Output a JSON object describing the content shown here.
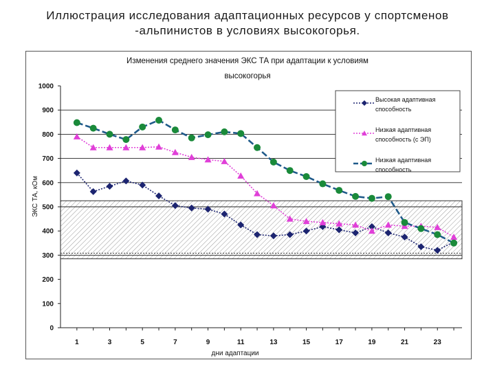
{
  "slide": {
    "title_line1": "Иллюстрация исследования адаптационных ресурсов у спортсменов",
    "title_line2": "-альпинистов в условиях высокогорья."
  },
  "chart_data": {
    "type": "line",
    "title_line1": "Изменения среднего значения ЭКС ТА при адаптации к условиям",
    "title_line2": "высокогорья",
    "xlabel": "дни адаптации",
    "ylabel": "ЭКС ТА, кОм",
    "ylim": [
      0,
      1000
    ],
    "yticks": [
      0,
      100,
      200,
      300,
      400,
      500,
      600,
      700,
      800,
      900,
      1000
    ],
    "xlim": [
      0,
      24.5
    ],
    "xticks": [
      1,
      3,
      5,
      7,
      9,
      11,
      13,
      15,
      17,
      19,
      21,
      23
    ],
    "grid": "horizontal major lines at 300, 500, 600, 700, 800, 900",
    "shaded_band": [
      285,
      525
    ],
    "dashed_reference": [
      308
    ],
    "legend_position": "top-right",
    "series": [
      {
        "name": "Высокая адаптивная способность",
        "legend_lines": [
          "Высокая адаптивная",
          "способность"
        ],
        "color": "#1c2470",
        "marker": "diamond",
        "line": "dotted",
        "x": [
          1,
          2,
          3,
          4,
          5,
          6,
          7,
          8,
          9,
          10,
          11,
          12,
          13,
          14,
          15,
          16,
          17,
          18,
          19,
          20,
          21,
          22,
          23,
          24
        ],
        "values": [
          640,
          563,
          585,
          607,
          590,
          545,
          505,
          495,
          490,
          470,
          425,
          385,
          380,
          385,
          400,
          418,
          405,
          392,
          418,
          392,
          375,
          335,
          320,
          355
        ]
      },
      {
        "name": "Низкая адаптивная способность (с ЭП)",
        "legend_lines": [
          "Низкая адаптивная",
          "способность (с ЭП)"
        ],
        "color": "#e03fd8",
        "marker": "triangle",
        "line": "dotted",
        "x": [
          1,
          2,
          3,
          4,
          5,
          6,
          7,
          8,
          9,
          10,
          11,
          12,
          13,
          14,
          15,
          16,
          17,
          18,
          19,
          20,
          21,
          22,
          23,
          24
        ],
        "values": [
          790,
          745,
          745,
          745,
          745,
          748,
          725,
          705,
          695,
          688,
          628,
          555,
          505,
          450,
          440,
          435,
          430,
          425,
          400,
          425,
          420,
          420,
          415,
          375
        ]
      },
      {
        "name": "Низкая адаптивная способность",
        "legend_lines": [
          "Низкая адаптивная",
          "способность"
        ],
        "color": "#1a8a3a",
        "line_color": "#1f5a8a",
        "marker": "circle",
        "line": "dashed",
        "x": [
          1,
          2,
          3,
          4,
          5,
          6,
          7,
          8,
          9,
          10,
          11,
          12,
          13,
          14,
          15,
          16,
          17,
          18,
          19,
          20,
          21,
          22,
          23,
          24
        ],
        "values": [
          848,
          825,
          800,
          778,
          830,
          858,
          818,
          785,
          798,
          810,
          803,
          745,
          685,
          650,
          625,
          595,
          568,
          543,
          535,
          542,
          435,
          410,
          385,
          350
        ]
      }
    ]
  }
}
